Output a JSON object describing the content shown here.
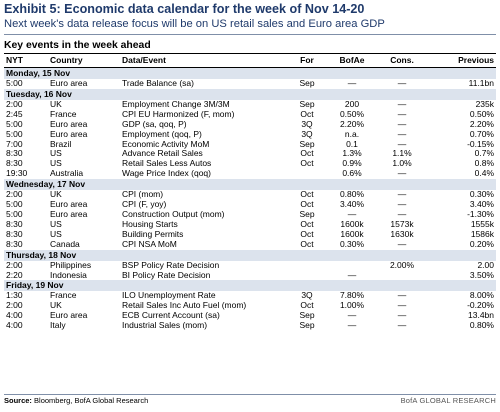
{
  "header": {
    "title": "Exhibit 5: Economic data calendar for the week of Nov 14-20",
    "subtitle": "Next week's data release focus will be on US retail sales and Euro area GDP"
  },
  "section_heading": "Key events in the week ahead",
  "columns": [
    "NYT",
    "Country",
    "Data/Event",
    "For",
    "BofAe",
    "Cons.",
    "Previous"
  ],
  "days": [
    {
      "label": "Monday, 15 Nov",
      "rows": [
        [
          "5:00",
          "Euro area",
          "Trade Balance (sa)",
          "Sep",
          "—",
          "—",
          "11.1bn"
        ]
      ]
    },
    {
      "label": "Tuesday, 16 Nov",
      "rows": [
        [
          "2:00",
          "UK",
          "Employment Change 3M/3M",
          "Sep",
          "200",
          "—",
          "235k"
        ],
        [
          "2:45",
          "France",
          "CPI EU Harmonized (F, mom)",
          "Oct",
          "0.50%",
          "—",
          "0.50%"
        ],
        [
          "5:00",
          "Euro area",
          "GDP (sa, qoq, P)",
          "3Q",
          "2.20%",
          "—",
          "2.20%"
        ],
        [
          "5:00",
          "Euro area",
          "Employment (qoq, P)",
          "3Q",
          "n.a.",
          "—",
          "0.70%"
        ],
        [
          "7:00",
          "Brazil",
          "Economic Activity MoM",
          "Sep",
          "0.1",
          "—",
          "-0.15%"
        ],
        [
          "8:30",
          "US",
          "Advance Retail Sales",
          "Oct",
          "1.3%",
          "1.1%",
          "0.7%"
        ],
        [
          "8:30",
          "US",
          "Retail Sales Less Autos",
          "Oct",
          "0.9%",
          "1.0%",
          "0.8%"
        ],
        [
          "19:30",
          "Australia",
          "Wage Price Index (qoq)",
          "",
          "0.6%",
          "—",
          "0.4%"
        ]
      ]
    },
    {
      "label": "Wednesday, 17 Nov",
      "rows": [
        [
          "2:00",
          "UK",
          "CPI (mom)",
          "Oct",
          "0.80%",
          "—",
          "0.30%"
        ],
        [
          "5:00",
          "Euro area",
          "CPI (F, yoy)",
          "Oct",
          "3.40%",
          "—",
          "3.40%"
        ],
        [
          "5:00",
          "Euro area",
          "Construction Output (mom)",
          "Sep",
          "—",
          "—",
          "-1.30%"
        ],
        [
          "8:30",
          "US",
          "Housing Starts",
          "Oct",
          "1600k",
          "1573k",
          "1555k"
        ],
        [
          "8:30",
          "US",
          "Building Permits",
          "Oct",
          "1600k",
          "1630k",
          "1586k"
        ],
        [
          "8:30",
          "Canada",
          "CPI NSA MoM",
          "Oct",
          "0.30%",
          "—",
          "0.20%"
        ]
      ]
    },
    {
      "label": "Thursday, 18 Nov",
      "rows": [
        [
          "2:00",
          "Philippines",
          "BSP Policy Rate Decision",
          "",
          "",
          "2.00%",
          "2.00"
        ],
        [
          "2:20",
          "Indonesia",
          "BI Policy Rate Decision",
          "",
          "—",
          "",
          "3.50%"
        ]
      ]
    },
    {
      "label": "Friday, 19 Nov",
      "rows": [
        [
          "1:30",
          "France",
          "ILO Unemployment Rate",
          "3Q",
          "7.80%",
          "—",
          "8.00%"
        ],
        [
          "2:00",
          "UK",
          "Retail Sales Inc Auto Fuel (mom)",
          "Oct",
          "1.00%",
          "—",
          "-0.20%"
        ],
        [
          "4:00",
          "Euro area",
          "ECB Current Account (sa)",
          "Sep",
          "—",
          "—",
          "13.4bn"
        ],
        [
          "4:00",
          "Italy",
          "Industrial Sales (mom)",
          "Sep",
          "—",
          "—",
          "0.80%"
        ]
      ]
    }
  ],
  "footer": {
    "source_label": "Source:",
    "source_text": "Bloomberg, BofA Global Research",
    "brand": "BofA GLOBAL RESEARCH"
  }
}
